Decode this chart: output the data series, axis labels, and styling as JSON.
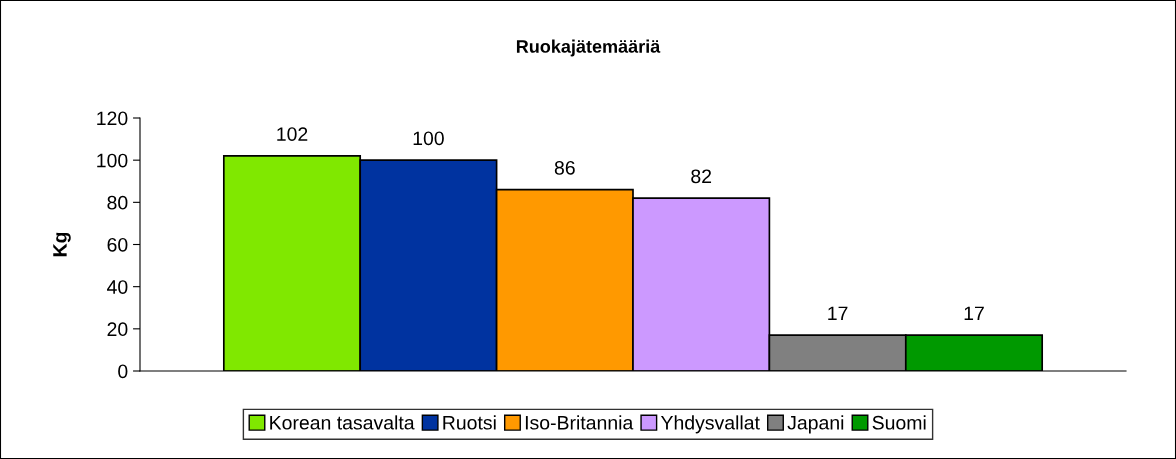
{
  "chart_data": {
    "type": "bar",
    "title": "Ruokajätemääriä",
    "ylabel": "Kg",
    "categories": [
      null
    ],
    "series": [
      {
        "name": "Korean tasavalta",
        "color": "#80e800",
        "values": [
          102
        ]
      },
      {
        "name": "Ruotsi",
        "color": "#0033a0",
        "values": [
          100
        ]
      },
      {
        "name": "Iso-Britannia",
        "color": "#ff9900",
        "values": [
          86
        ]
      },
      {
        "name": "Yhdysvallat",
        "color": "#cc99ff",
        "values": [
          82
        ]
      },
      {
        "name": "Japani",
        "color": "#808080",
        "values": [
          17
        ]
      },
      {
        "name": "Suomi",
        "color": "#009900",
        "values": [
          17
        ]
      }
    ],
    "ylim": [
      0,
      120
    ],
    "yticks": [
      0,
      20,
      40,
      60,
      80,
      100,
      120
    ],
    "data_labels": true,
    "grid": false,
    "legend": "bottom"
  }
}
